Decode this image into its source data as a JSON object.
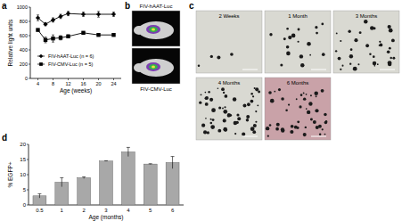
{
  "chart_data": [
    {
      "type": "line",
      "x_label": "Age (weeks)",
      "y_label": "Relative light units",
      "x": [
        4,
        6,
        8,
        10,
        12,
        16,
        20,
        24
      ],
      "xlim": [
        2,
        26
      ],
      "xticks": [
        4,
        8,
        12,
        16,
        20,
        24
      ],
      "ylim": [
        0,
        1000
      ],
      "yticks": [
        0,
        200,
        400,
        600,
        800,
        1000
      ],
      "legend": "lower left",
      "series": [
        {
          "name": "FIV-hAAT-Luc (n = 6)",
          "color": "#000000",
          "marker": "diamond",
          "values": [
            850,
            760,
            820,
            870,
            910,
            900,
            900,
            900
          ],
          "errors": [
            40,
            20,
            30,
            30,
            30,
            30,
            40,
            30
          ]
        },
        {
          "name": "FIV-CMV-Luc (n = 5)",
          "color": "#000000",
          "marker": "square",
          "values": [
            680,
            540,
            560,
            570,
            590,
            640,
            610,
            610
          ],
          "errors": [
            10,
            40,
            50,
            30,
            20,
            10,
            10,
            10
          ]
        }
      ]
    },
    {
      "type": "bar",
      "x_label": "Age (months)",
      "y_label": "% EGFP+",
      "categories": [
        "0.5",
        "1",
        "2",
        "3",
        "4",
        "5",
        "6"
      ],
      "values": [
        3,
        7.5,
        9,
        14.5,
        17.5,
        13.5,
        14
      ],
      "errors": [
        0.7,
        1.5,
        0.3,
        0.1,
        1.5,
        0.1,
        2
      ],
      "color": "#a8a8a8",
      "ylim": [
        0,
        20
      ],
      "yticks": [
        0,
        5,
        10,
        15,
        20
      ]
    }
  ],
  "panel_labels": [
    "a",
    "b",
    "c",
    "d"
  ],
  "imaging": {
    "b": {
      "captions": [
        "FIV-hAAT-Luc",
        "FIV-CMV-Luc"
      ]
    },
    "c": {
      "captions": [
        "2 Weeks",
        "1 Month",
        "3 Months",
        "4 Months",
        "6 Months"
      ]
    }
  }
}
